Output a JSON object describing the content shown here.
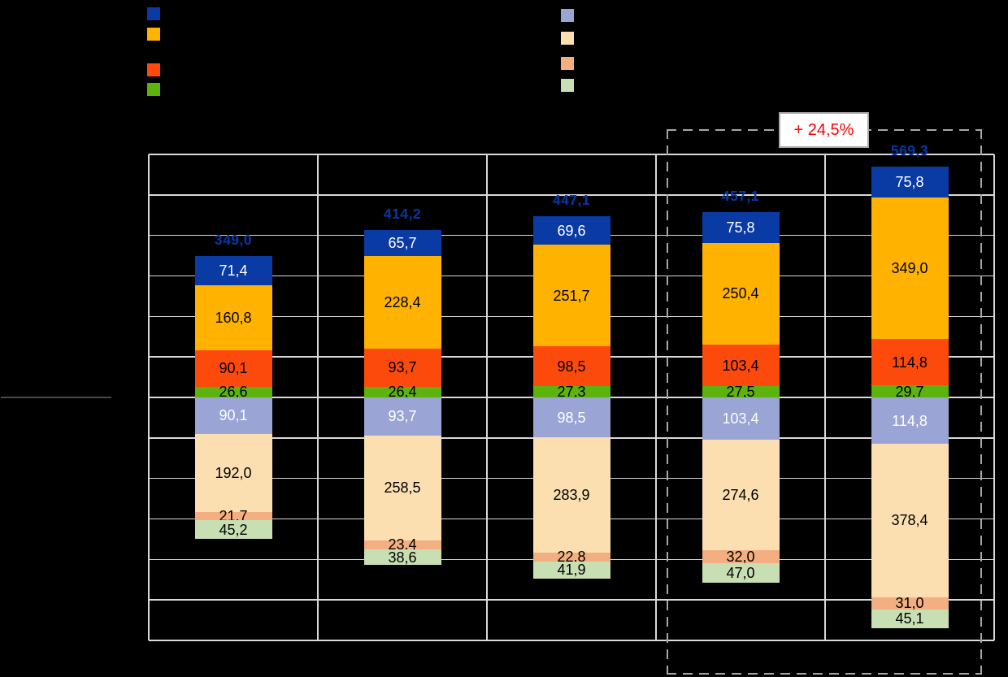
{
  "page": {
    "background": "#000000",
    "note": "chart exported with transparent background; title, legend labels, axis tick labels and category labels are rendered in black and thus invisible"
  },
  "legend": {
    "left_column": [
      {
        "name": "series-dark-blue",
        "color": "#0A3AA3"
      },
      {
        "name": "series-amber",
        "color": "#FFB300"
      },
      {
        "name": "series-orange-red",
        "color": "#FC4A0D"
      },
      {
        "name": "series-green",
        "color": "#5DB30D"
      }
    ],
    "right_column": [
      {
        "name": "series-lavender",
        "color": "#9AA4D5"
      },
      {
        "name": "series-tan",
        "color": "#FBDFB1"
      },
      {
        "name": "series-salmon",
        "color": "#F3AE81"
      },
      {
        "name": "series-light-green",
        "color": "#C8DFB3"
      }
    ]
  },
  "annotation": {
    "text": "+ 24,5%",
    "text_color": "#FF0000",
    "box_fill": "#FFFFFF",
    "box_border": "#A9A9A9"
  },
  "chart_data": {
    "type": "bar",
    "subtype": "mirrored-stacked-columns",
    "title": "",
    "xlabel": "",
    "ylabel": "",
    "n_groups": 5,
    "axis": {
      "ylim": [
        -600,
        600
      ],
      "gridline_step": 100,
      "grid": true,
      "rows": 12,
      "cols": 5
    },
    "legend_position": "top",
    "decimal_separator": ",",
    "totals": {
      "color": "#0639A8",
      "values": [
        349.0,
        414.2,
        447.1,
        457.1,
        569.3
      ],
      "labels": [
        "349,0",
        "414,2",
        "447,1",
        "457,1",
        "569,3"
      ]
    },
    "upper_series_top_to_bottom": [
      {
        "key": "dark-blue",
        "color": "#0A3AA3",
        "text_color": "#FFFFFF",
        "values": [
          71.4,
          65.7,
          69.6,
          75.8,
          75.8
        ],
        "labels": [
          "71,4",
          "65,7",
          "69,6",
          "75,8",
          "75,8"
        ]
      },
      {
        "key": "amber",
        "color": "#FFB300",
        "text_color": "#000000",
        "values": [
          160.8,
          228.4,
          251.7,
          250.4,
          349.0
        ],
        "labels": [
          "160,8",
          "228,4",
          "251,7",
          "250,4",
          "349,0"
        ]
      },
      {
        "key": "orange-red",
        "color": "#FC4A0D",
        "text_color": "#000000",
        "values": [
          90.1,
          93.7,
          98.5,
          103.4,
          114.8
        ],
        "labels": [
          "90,1",
          "93,7",
          "98,5",
          "103,4",
          "114,8"
        ]
      },
      {
        "key": "green",
        "color": "#5DB30D",
        "text_color": "#000000",
        "values": [
          26.6,
          26.4,
          27.3,
          27.5,
          29.7
        ],
        "labels": [
          "26,6",
          "26,4",
          "27,3",
          "27,5",
          "29,7"
        ]
      }
    ],
    "lower_series_top_to_bottom": [
      {
        "key": "lavender",
        "color": "#9AA4D5",
        "text_color": "#FFFFFF",
        "values": [
          90.1,
          93.7,
          98.5,
          103.4,
          114.8
        ],
        "labels": [
          "90,1",
          "93,7",
          "98,5",
          "103,4",
          "114,8"
        ]
      },
      {
        "key": "tan",
        "color": "#FBDFB1",
        "text_color": "#000000",
        "values": [
          192.0,
          258.5,
          283.9,
          274.6,
          378.4
        ],
        "labels": [
          "192,0",
          "258,5",
          "283,9",
          "274,6",
          "378,4"
        ]
      },
      {
        "key": "salmon",
        "color": "#F3AE81",
        "text_color": "#000000",
        "values": [
          21.7,
          23.4,
          22.8,
          32.0,
          31.0
        ],
        "labels": [
          "21,7",
          "23,4",
          "22,8",
          "32,0",
          "31,0"
        ]
      },
      {
        "key": "light-green",
        "color": "#C8DFB3",
        "text_color": "#000000",
        "values": [
          45.2,
          38.6,
          41.9,
          47.0,
          45.1
        ],
        "labels": [
          "45,2",
          "38,6",
          "41,9",
          "47,0",
          "45,1"
        ]
      }
    ],
    "highlight": {
      "type": "dashed-rectangle",
      "covers_groups": [
        4,
        5
      ],
      "annotation_text": "+ 24,5%",
      "color": "#A6A6A6"
    }
  }
}
